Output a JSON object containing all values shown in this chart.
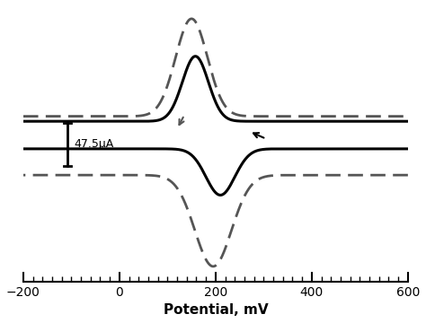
{
  "title": "",
  "xlabel": "Potential, mV",
  "ylabel": "",
  "xlim": [
    -200,
    600
  ],
  "x_ticks": [
    -200,
    0,
    200,
    400,
    600
  ],
  "background_color": "#ffffff",
  "scale_bar_label": "47.5μA",
  "solid_color": "#000000",
  "dashed_color": "#555555",
  "solid_linewidth": 2.2,
  "dashed_linewidth": 2.0
}
